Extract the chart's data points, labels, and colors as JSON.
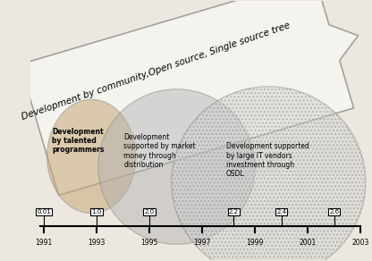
{
  "arrow_label": "Development by community,Open source, Single source tree",
  "ellipse1_label": "Development\nby talented\nprogrammers",
  "ellipse2_label": "Development\nsupported by market\nmoney through\ndistribution",
  "ellipse3_label": "Development supported\nby large IT vendors\ninvestment through\nOSDL",
  "timeline_years": [
    1991,
    1993,
    1995,
    1997,
    1999,
    2001,
    2003
  ],
  "versions": [
    "0.01",
    "1.0",
    "2.0",
    "2.2",
    "2.4",
    "2.6"
  ],
  "version_years": [
    1991,
    1993,
    1995,
    1998.2,
    2000,
    2002
  ],
  "background_color": "#ede8df",
  "arrow_fc": "#f5f5f0",
  "arrow_ec": "#999999"
}
